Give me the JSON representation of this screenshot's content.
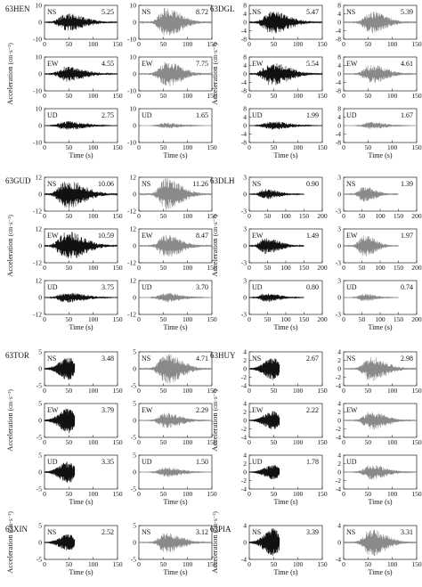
{
  "chart_data": {
    "type": "line",
    "x_label": "Time (s)",
    "y_label": "Acceleration",
    "y_unit": "(cm·s⁻²)",
    "colors": {
      "primary": "#111111",
      "secondary": "#8a8a8a",
      "axis": "#222222"
    },
    "stations": [
      {
        "name": "63HEN",
        "ylim": [
          -10,
          10
        ],
        "yticks": [
          -10,
          0,
          10
        ],
        "components": [
          {
            "component": "NS",
            "left_peak": "5.25",
            "right_peak": "8.72"
          },
          {
            "component": "EW",
            "left_peak": "4.55",
            "right_peak": "7.75"
          },
          {
            "component": "UD",
            "left_peak": "2.75",
            "right_peak": "1.65"
          }
        ]
      },
      {
        "name": "63DGL",
        "ylim": [
          -8,
          8
        ],
        "yticks": [
          -8,
          -4,
          0,
          4,
          8
        ],
        "components": [
          {
            "component": "NS",
            "left_peak": "5.47",
            "right_peak": "5.39"
          },
          {
            "component": "EW",
            "left_peak": "5.54",
            "right_peak": "4.61"
          },
          {
            "component": "UD",
            "left_peak": "1.99",
            "right_peak": "1.67"
          }
        ]
      },
      {
        "name": "63GUD",
        "ylim": [
          -12,
          12
        ],
        "yticks": [
          -12,
          0,
          12
        ],
        "components": [
          {
            "component": "NS",
            "left_peak": "10.06",
            "right_peak": "11.26"
          },
          {
            "component": "EW",
            "left_peak": "10.59",
            "right_peak": "8.47"
          },
          {
            "component": "UD",
            "left_peak": "3.75",
            "right_peak": "3.70"
          }
        ]
      },
      {
        "name": "63DLH",
        "ylim": [
          -3,
          3
        ],
        "yticks": [
          -3,
          0,
          3
        ],
        "components": [
          {
            "component": "NS",
            "left_peak": "0.90",
            "right_peak": "1.39"
          },
          {
            "component": "EW",
            "left_peak": "1.49",
            "right_peak": "1.97"
          },
          {
            "component": "UD",
            "left_peak": "0.80",
            "right_peak": "0.74"
          }
        ]
      },
      {
        "name": "63TOR",
        "ylim": [
          -5,
          5
        ],
        "yticks": [
          -5,
          0,
          5
        ],
        "components": [
          {
            "component": "NS",
            "left_peak": "3.48",
            "right_peak": "4.71"
          },
          {
            "component": "EW",
            "left_peak": "3.79",
            "right_peak": "2.29"
          },
          {
            "component": "UD",
            "left_peak": "3.35",
            "right_peak": "1.50"
          }
        ]
      },
      {
        "name": "63HUY",
        "ylim": [
          -4,
          4
        ],
        "yticks": [
          -4,
          -2,
          0,
          2,
          4
        ],
        "components": [
          {
            "component": "NS",
            "left_peak": "2.67",
            "right_peak": "2.98"
          },
          {
            "component": "EW",
            "left_peak": "2.22",
            "right_peak": ""
          },
          {
            "component": "UD",
            "left_peak": "1.78",
            "right_peak": ""
          }
        ]
      },
      {
        "name": "63XIN",
        "ylim": [
          -5,
          5
        ],
        "yticks": [
          -5,
          0,
          5
        ],
        "components": [
          {
            "component": "NS",
            "left_peak": "2.52",
            "right_peak": "3.12"
          }
        ]
      },
      {
        "name": "63PIA",
        "ylim": [
          -4,
          4
        ],
        "yticks": [
          -4,
          0,
          4
        ],
        "components": [
          {
            "component": "NS",
            "left_peak": "3.39",
            "right_peak": "3.31"
          }
        ]
      }
    ]
  }
}
